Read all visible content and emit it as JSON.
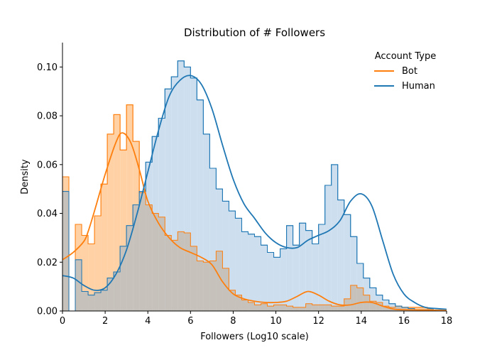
{
  "chart_data": {
    "type": "histogram",
    "title": "Distribution of # Followers",
    "xlabel": "Followers (Log10 scale)",
    "ylabel": "Density",
    "xlim": [
      0,
      18
    ],
    "ylim": [
      0,
      0.11
    ],
    "x_ticks": [
      0,
      2,
      4,
      6,
      8,
      10,
      12,
      14,
      16,
      18
    ],
    "y_ticks": [
      0.0,
      0.02,
      0.04,
      0.06,
      0.08,
      0.1
    ],
    "y_tick_labels": [
      "0.00",
      "0.02",
      "0.04",
      "0.06",
      "0.08",
      "0.10"
    ],
    "grid": false,
    "legend": {
      "title": "Account Type",
      "placement": "top-right",
      "entries": [
        "Bot",
        "Human"
      ]
    },
    "bin_width": 0.3,
    "bin_start": 0,
    "series": [
      {
        "name": "Bot",
        "color": "#ff7f0e",
        "fill": "#ffcf9f",
        "hist": [
          0.055,
          0,
          0.0355,
          0.031,
          0.0275,
          0.039,
          0.052,
          0.0725,
          0.0805,
          0.066,
          0.0845,
          0.0695,
          0.0485,
          0.0435,
          0.04,
          0.0385,
          0.031,
          0.029,
          0.0325,
          0.032,
          0.0265,
          0.0205,
          0.02,
          0.0205,
          0.0245,
          0.0175,
          0.0085,
          0.0065,
          0.0045,
          0.0035,
          0.0025,
          0.003,
          0.002,
          0.0025,
          0.0025,
          0.002,
          0.0015,
          0.0015,
          0.003,
          0.0025,
          0.0025,
          0.0025,
          0.002,
          0.002,
          0.005,
          0.0105,
          0.0095,
          0.0065,
          0.004,
          0.0035,
          0.002,
          0.0015,
          0.002,
          0.0015,
          0.0015,
          0.0015,
          0.0015,
          0.001
        ],
        "kde_x": [
          0,
          0.5,
          1,
          1.2,
          1.5,
          2,
          2.5,
          2.8,
          3.2,
          3.6,
          4,
          4.5,
          5,
          5.5,
          6,
          6.5,
          7,
          7.5,
          8,
          8.5,
          9,
          9.5,
          10,
          10.5,
          11,
          11.5,
          12,
          12.5,
          13,
          13.5,
          14,
          14.5,
          15,
          15.5,
          16,
          17,
          18
        ],
        "kde_y": [
          0.021,
          0.024,
          0.0285,
          0.0325,
          0.041,
          0.056,
          0.069,
          0.073,
          0.069,
          0.058,
          0.045,
          0.036,
          0.03,
          0.026,
          0.024,
          0.022,
          0.019,
          0.012,
          0.007,
          0.005,
          0.004,
          0.0035,
          0.0035,
          0.004,
          0.006,
          0.008,
          0.0065,
          0.004,
          0.0025,
          0.0025,
          0.0035,
          0.0035,
          0.002,
          0.0008,
          0.0005,
          0.0004,
          0.0002
        ]
      },
      {
        "name": "Human",
        "color": "#1f77b4",
        "fill": "#c4d9ec",
        "hist": [
          0.049,
          0,
          0.021,
          0.008,
          0.0065,
          0.0075,
          0.0085,
          0.0135,
          0.016,
          0.0265,
          0.035,
          0.0435,
          0.049,
          0.061,
          0.0715,
          0.079,
          0.091,
          0.096,
          0.1025,
          0.1,
          0.0955,
          0.0865,
          0.0725,
          0.0585,
          0.05,
          0.045,
          0.041,
          0.038,
          0.0325,
          0.0315,
          0.0305,
          0.027,
          0.024,
          0.022,
          0.0255,
          0.035,
          0.027,
          0.036,
          0.033,
          0.0275,
          0.0355,
          0.0515,
          0.06,
          0.0455,
          0.0395,
          0.0305,
          0.0195,
          0.0135,
          0.0095,
          0.0065,
          0.0045,
          0.003,
          0.002,
          0.0015,
          0.001,
          0.0005,
          0.0005,
          0.0005
        ],
        "kde_x": [
          0,
          0.5,
          1,
          1.5,
          2,
          2.5,
          3,
          3.5,
          4,
          4.5,
          5,
          5.5,
          6,
          6.5,
          7,
          7.5,
          8,
          8.5,
          9,
          9.5,
          10,
          10.5,
          11,
          11.5,
          12,
          12.5,
          13,
          13.5,
          14,
          14.5,
          15,
          15.5,
          16,
          16.5,
          17,
          17.5,
          18
        ],
        "kde_y": [
          0.0145,
          0.0135,
          0.0105,
          0.0085,
          0.0095,
          0.015,
          0.025,
          0.04,
          0.057,
          0.074,
          0.088,
          0.0945,
          0.0965,
          0.093,
          0.083,
          0.068,
          0.054,
          0.044,
          0.038,
          0.032,
          0.028,
          0.026,
          0.026,
          0.029,
          0.031,
          0.033,
          0.037,
          0.045,
          0.048,
          0.043,
          0.029,
          0.015,
          0.007,
          0.0035,
          0.0015,
          0.001,
          0.0007
        ]
      }
    ]
  }
}
